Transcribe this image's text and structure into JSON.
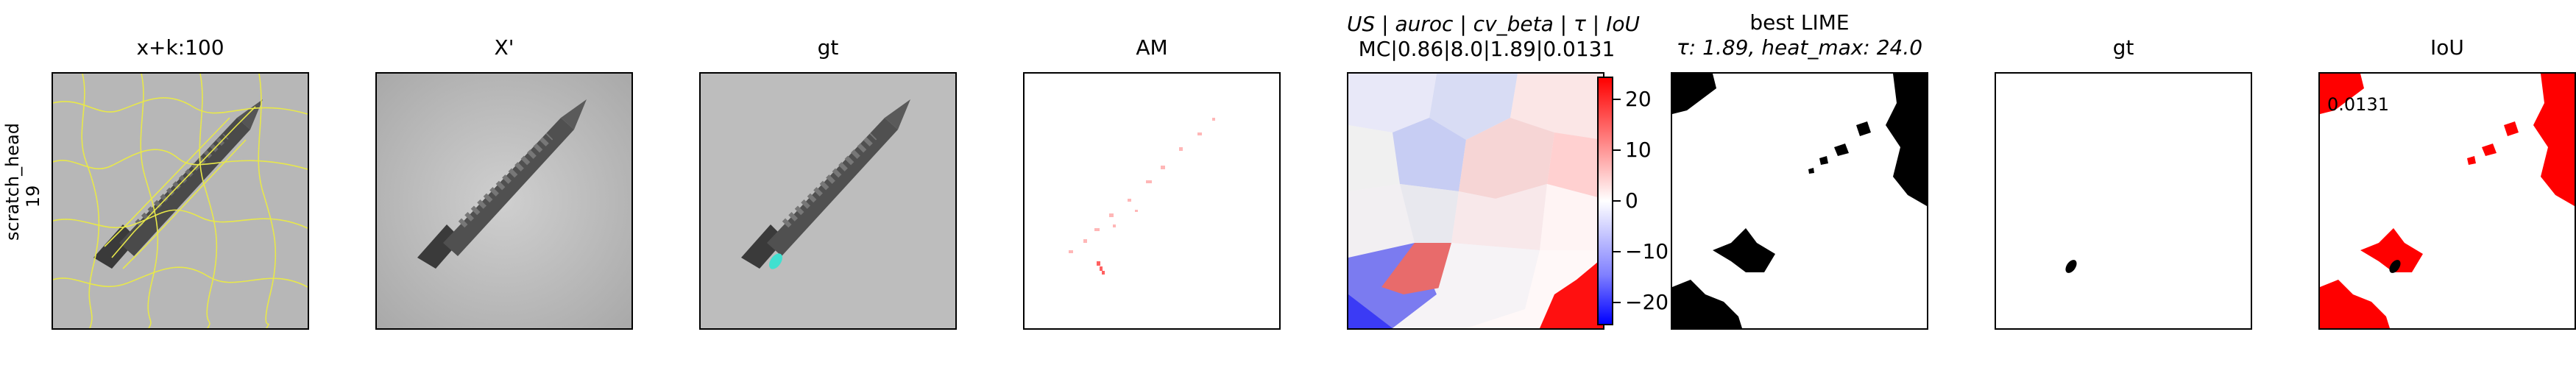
{
  "row_label": {
    "line1": "scratch_head",
    "line2": "19"
  },
  "panels": [
    {
      "key": "xk",
      "title": "x+k:100"
    },
    {
      "key": "xprime",
      "title": "X'"
    },
    {
      "key": "gt1",
      "title": "gt"
    },
    {
      "key": "am",
      "title": "AM"
    },
    {
      "key": "us",
      "title_line1": "US | auroc | cv_beta | τ | IoU",
      "title_line2": "MC|0.86|8.0|1.89|0.0131"
    },
    {
      "key": "lime",
      "title_line1": "best LIME",
      "title_line2": "τ: 1.89, heat_max: 24.0"
    },
    {
      "key": "gt2",
      "title": "gt"
    },
    {
      "key": "iou",
      "title": "IoU",
      "overlay_value": "0.0131"
    }
  ],
  "colorbar": {
    "ticks": [
      "20",
      "10",
      "0",
      "−10",
      "−20"
    ],
    "colors": {
      "top": "#ff0000",
      "mid": "#ffffff",
      "bottom": "#0000ff"
    }
  },
  "colors": {
    "contour": "#e8e84a",
    "defect_cyan": "#40e0d0",
    "positive_red": "#ff0000"
  }
}
